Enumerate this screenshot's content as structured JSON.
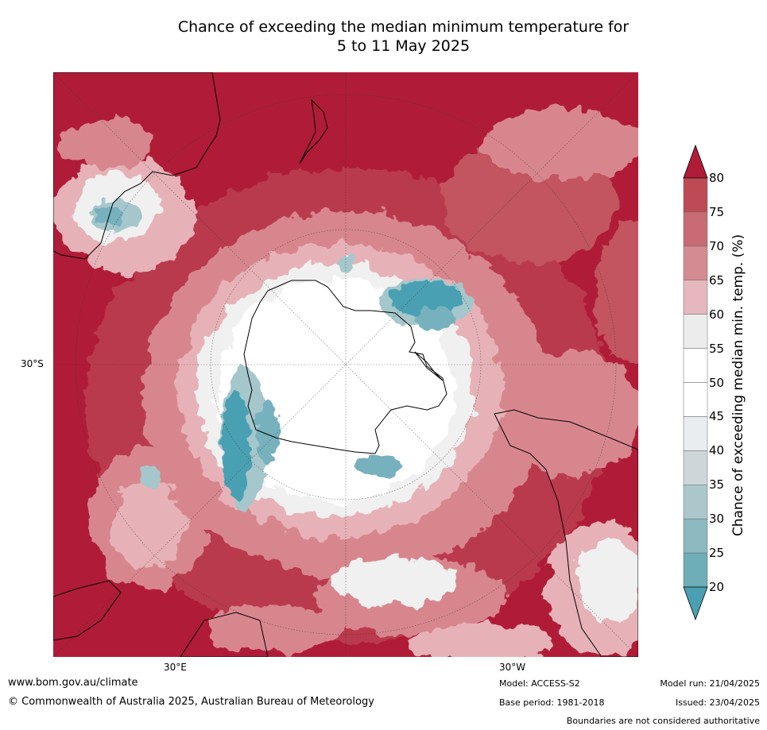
{
  "title": {
    "line1": "Chance of exceeding the median minimum temperature for",
    "line2": "5 to 11 May 2025"
  },
  "map": {
    "projection": "south-polar-stereographic",
    "graticule_labels": {
      "left_lat": "30°S",
      "bottom_left_lon": "30°E",
      "bottom_right_lon": "30°W"
    },
    "colors": {
      "very_high": "#b01c37",
      "high": "#c2545f",
      "mid_high": "#d8868e",
      "low_high": "#e6b2b7",
      "neutral": "#f0f0f0",
      "white": "#ffffff",
      "light_grey": "#d6dadd",
      "low": "#a5c7cc",
      "lower": "#76b1bd",
      "lowest": "#4aa0b2"
    },
    "landmasses": [
      "Antarctica",
      "Australia",
      "New Zealand",
      "South America",
      "Africa"
    ]
  },
  "colorbar": {
    "label": "Chance of exceeding median min. temp. (%)",
    "ticks": [
      "20",
      "25",
      "30",
      "35",
      "40",
      "45",
      "50",
      "55",
      "60",
      "65",
      "70",
      "75",
      "80"
    ],
    "colors": [
      "#4aa0b2",
      "#6fadb8",
      "#8db9c1",
      "#abc7cb",
      "#cfd6d9",
      "#e9edef",
      "#ffffff",
      "#ffffff",
      "#ececec",
      "#e4b8bc",
      "#d48b92",
      "#c96b74",
      "#be4a55",
      "#b01c37"
    ]
  },
  "footer": {
    "website": "www.bom.gov.au/climate",
    "copyright": "© Commonwealth of Australia 2025, Australian Bureau of Meteorology",
    "model": "Model: ACCESS-S2",
    "base_period": "Base period: 1981-2018",
    "model_run": "Model run: 21/04/2025",
    "issued": "Issued: 23/04/2025",
    "disclaimer": "Boundaries are not considered authoritative"
  }
}
